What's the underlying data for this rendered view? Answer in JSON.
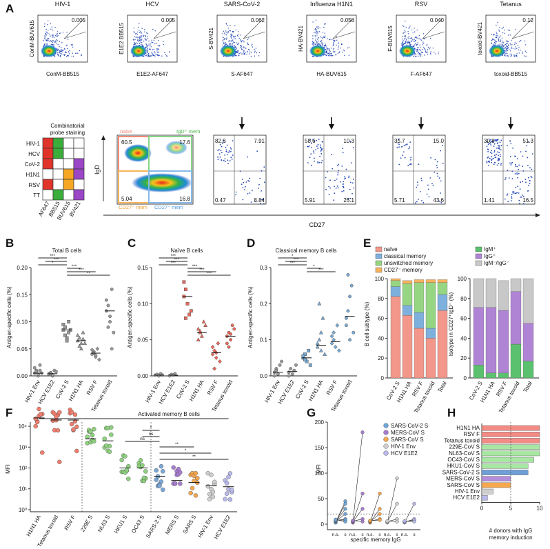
{
  "panel_letters": [
    "A",
    "B",
    "C",
    "D",
    "E",
    "F",
    "G",
    "H"
  ],
  "panel_a": {
    "flow_plots": [
      {
        "title": "HIV-1",
        "ylabel": "ConM-BUV615",
        "xlabel": "ConM-BB515",
        "gate": "0.005"
      },
      {
        "title": "HCV",
        "ylabel": "E1E2 BB515",
        "xlabel": "E1E2-AF647",
        "gate": "0.005"
      },
      {
        "title": "SARS-CoV-2",
        "ylabel": "S-BV421",
        "xlabel": "S-AF647",
        "gate": "0.062"
      },
      {
        "title": "Influenza H1N1",
        "ylabel": "HA-BV421",
        "xlabel": "HA-BUV615",
        "gate": "0.058"
      },
      {
        "title": "RSV",
        "ylabel": "F-BUV615",
        "xlabel": "F-AF647",
        "gate": "0.040"
      },
      {
        "title": "Tetanus",
        "ylabel": "toxoid-BV421",
        "xlabel": "toxoid-BB515",
        "gate": "0.12"
      }
    ],
    "combinatorial": {
      "title_line1": "Combinatorial",
      "title_line2": "probe staining",
      "rows": [
        "HIV-1",
        "HCV",
        "CoV-2",
        "H1N1",
        "RSV",
        "TT"
      ],
      "cols": [
        "AF647",
        "BB515",
        "BUV615",
        "BV421"
      ],
      "colors": {
        "red": "#e0342b",
        "green": "#3aad3a",
        "orange": "#f5a623",
        "purple": "#9b45c7"
      }
    },
    "quadrant_gate": {
      "ylabel": "IgD",
      "xlabel": "CD27",
      "naive_label": "naive",
      "igd_mem_label": "IgD⁺ mem",
      "cd27neg_label": "CD27⁻ mem",
      "cd27pos_label": "CD27⁺ mem",
      "q": [
        "60.5",
        "17.6",
        "5.04",
        "16.8"
      ]
    },
    "quadrant_plots": [
      {
        "q": [
          "82.8",
          "7.91",
          "0.47",
          "8.84"
        ]
      },
      {
        "q": [
          "58.6",
          "10.3",
          "5.91",
          "25.1"
        ]
      },
      {
        "q": [
          "35.7",
          "15.0",
          "5.71",
          "43.6"
        ]
      },
      {
        "q": [
          "30.8",
          "51.3",
          "1.41",
          "16.5"
        ]
      }
    ]
  },
  "panel_b": {
    "title": "Total B cells",
    "ylabel": "Antigen-specific cells (%)",
    "yticks": [
      "0.00",
      "0.05",
      "0.10",
      "0.15",
      "0.20"
    ],
    "cats": [
      "HIV-1 Env",
      "HCV E1E2",
      "CoV-2 S",
      "H1N1 HA",
      "RSV F",
      "Tetanus toxoid"
    ],
    "stars": [
      "***",
      "***",
      "*",
      "***",
      "***",
      "**"
    ]
  },
  "panel_c": {
    "title": "Naïve B cells",
    "ylabel": "Antigen-specific cells (%)",
    "yticks": [
      "0.00",
      "0.05",
      "0.10",
      "0.15"
    ],
    "cats": [
      "HIV-1 Env",
      "HCV E1E2",
      "CoV-2 S",
      "H1N1 HA",
      "RSV F",
      "Tetanus toxoid"
    ],
    "stars": [
      "***",
      "***",
      "***",
      "***",
      "***",
      "***"
    ]
  },
  "panel_d": {
    "title": "Classical memory B cells",
    "ylabel": "Antigen-specific cells (%)",
    "yticks": [
      "0.0",
      "0.1",
      "0.2",
      "0.3"
    ],
    "cats": [
      "HIV-1 Env",
      "HCV E1E2",
      "CoV-2 S",
      "H1N1 HA",
      "RSV F",
      "Tetanus toxoid"
    ],
    "stars": [
      "*",
      "***",
      "***",
      "*",
      "***"
    ]
  },
  "panel_e": {
    "legend_left": [
      "naïve",
      "classical memory",
      "unswitched memory",
      "CD27⁻ memory"
    ],
    "legend_right": [
      "IgM⁺",
      "IgG⁺",
      "IgM⁻/IgG⁻"
    ],
    "ylabel_left": "B cell subtype (%)",
    "ylabel_right": "Isotype in CD27⁺IgD⁻ (%)",
    "yticks": [
      "0",
      "20",
      "40",
      "60",
      "80",
      "100"
    ],
    "cats": [
      "CoV-2 S",
      "H1N1 HA",
      "RSV F",
      "Tetanus toxoid",
      "Total"
    ]
  },
  "panel_f": {
    "title": "Activated memory B cells",
    "ylabel": "MFI",
    "yticks": [
      "10⁰",
      "10¹",
      "10²",
      "10³",
      "10⁴"
    ],
    "cats": [
      "H1N1 HA",
      "Tetanus toxoid",
      "RSV F",
      "229E S",
      "NL63 S",
      "HKU1 S",
      "OC43 S",
      "SARS-2 S",
      "MERS S",
      "SARS S",
      "HIV-1 Env",
      "HCV E1E2"
    ],
    "sig": [
      "*",
      "ns",
      "ns",
      "**",
      "*",
      "**"
    ]
  },
  "panel_g": {
    "ylabel": "MFI",
    "yticks": [
      "0",
      "50",
      "100",
      "150",
      "200"
    ],
    "xlabel": "specific memory IgG",
    "pair": [
      "n.s.",
      "s"
    ],
    "legend": [
      "SARS-CoV-2 S",
      "MERS-CoV S",
      "SARS-CoV S",
      "HIV-1 Env",
      "HCV E1E2"
    ]
  },
  "panel_h": {
    "cats": [
      "H1N1 HA",
      "RSV F",
      "Tetanus toxoid",
      "229E-CoV S",
      "NL63-CoV S",
      "OC43-CoV S",
      "HKU1-CoV S",
      "SARS-CoV-2 S",
      "MERS-CoV S",
      "SARS-CoV S",
      "HIV-1 Env",
      "HCV E1E2"
    ],
    "values": [
      10,
      10,
      10,
      10,
      10,
      9,
      8,
      8,
      5,
      5,
      2,
      1
    ],
    "xticks": [
      "0",
      "5",
      "10"
    ],
    "xlabel_line1": "# donors with IgG",
    "xlabel_line2": "memory induction"
  }
}
